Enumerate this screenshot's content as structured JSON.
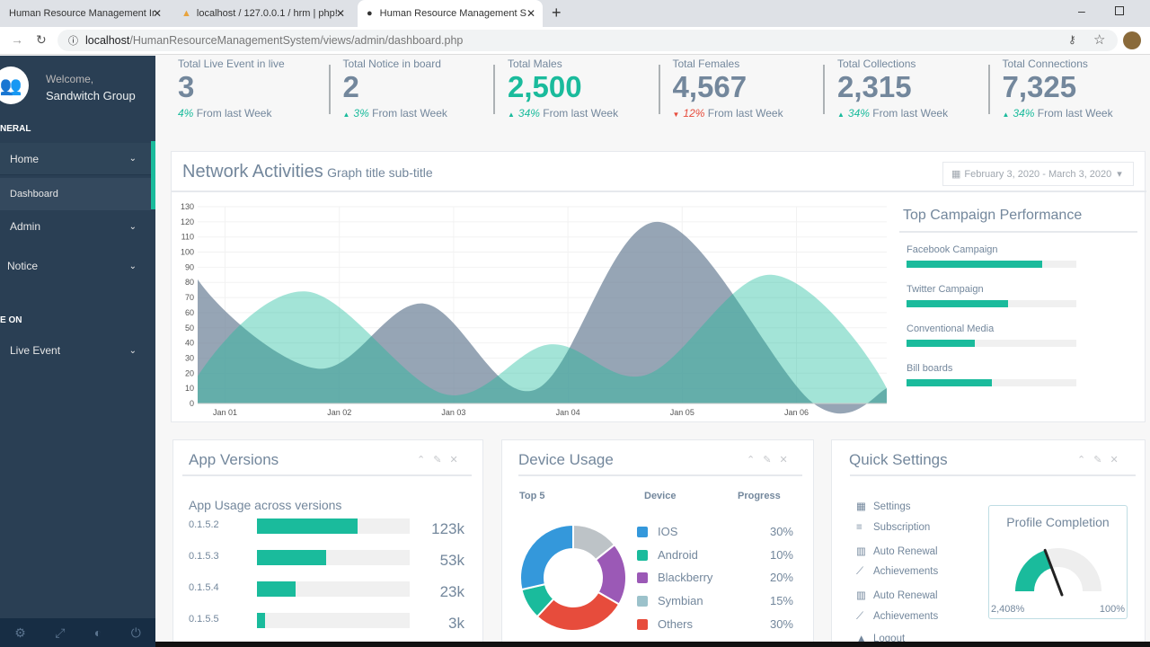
{
  "browser": {
    "tabs": [
      {
        "title": "Human Resource Management Ir"
      },
      {
        "title": "localhost / 127.0.0.1 / hrm | php!"
      },
      {
        "title": "Human Resource Management S"
      }
    ],
    "url_host": "localhost",
    "url_path": "/HumanResourceManagementSystem/views/admin/dashboard.php"
  },
  "sidebar": {
    "welcome": "Welcome,",
    "user": "Sandwitch Group",
    "section_general": "NERAL",
    "items": [
      {
        "label": "Home"
      },
      {
        "label": "Dashboard"
      },
      {
        "label": "Admin"
      },
      {
        "label": "Notice"
      }
    ],
    "section_live": "E ON",
    "live_item": "Live Event"
  },
  "stats": [
    {
      "label": "Total Live Event in live",
      "value": "3",
      "change": "4%",
      "suffix": "From last Week",
      "trend": "none"
    },
    {
      "label": "Total Notice in board",
      "value": "2",
      "change": "3%",
      "suffix": "From last Week",
      "trend": "up"
    },
    {
      "label": "Total Males",
      "value": "2,500",
      "change": "34%",
      "suffix": "From last Week",
      "trend": "up"
    },
    {
      "label": "Total Females",
      "value": "4,567",
      "change": "12%",
      "suffix": "From last Week",
      "trend": "down"
    },
    {
      "label": "Total Collections",
      "value": "2,315",
      "change": "34%",
      "suffix": "From last Week",
      "trend": "up"
    },
    {
      "label": "Total Connections",
      "value": "7,325",
      "change": "34%",
      "suffix": "From last Week",
      "trend": "up"
    }
  ],
  "network": {
    "title": "Network Activities",
    "subtitle": "Graph title sub-title",
    "daterange": "February 3, 2020 - March 3, 2020"
  },
  "chart_data": {
    "type": "area",
    "title": "Network Activities",
    "ylim": [
      0,
      130
    ],
    "yticks": [
      0,
      10,
      20,
      30,
      40,
      50,
      60,
      70,
      80,
      90,
      100,
      110,
      120,
      130
    ],
    "xticks": [
      "Jan 01",
      "Jan 02",
      "Jan 03",
      "Jan 04",
      "Jan 05",
      "Jan 06"
    ],
    "xlim": [
      0.76,
      6.79
    ],
    "series": [
      {
        "name": "series-1",
        "color": "#73879C",
        "points": [
          [
            0.76,
            82
          ],
          [
            1.81,
            23
          ],
          [
            2.74,
            66
          ],
          [
            3.71,
            9
          ],
          [
            4.79,
            120
          ],
          [
            6.15,
            0
          ],
          [
            6.79,
            10
          ]
        ]
      },
      {
        "name": "series-2",
        "color": "#1ABB9C",
        "points": [
          [
            0.76,
            18
          ],
          [
            1.71,
            74
          ],
          [
            2.93,
            6
          ],
          [
            3.84,
            39
          ],
          [
            4.69,
            19
          ],
          [
            5.78,
            85
          ],
          [
            6.79,
            10
          ]
        ]
      }
    ]
  },
  "campaign": {
    "title": "Top Campaign Performance",
    "items": [
      {
        "label": "Facebook Campaign",
        "pct": 80
      },
      {
        "label": "Twitter Campaign",
        "pct": 60
      },
      {
        "label": "Conventional Media",
        "pct": 40
      },
      {
        "label": "Bill boards",
        "pct": 50
      }
    ]
  },
  "app_versions": {
    "title": "App Versions",
    "subtitle": "App Usage across versions",
    "items": [
      {
        "version": "0.1.5.2",
        "value": "123k",
        "pct": 66
      },
      {
        "version": "0.1.5.3",
        "value": "53k",
        "pct": 45
      },
      {
        "version": "0.1.5.4",
        "value": "23k",
        "pct": 25
      },
      {
        "version": "0.1.5.5",
        "value": "3k",
        "pct": 5
      }
    ]
  },
  "device_usage": {
    "title": "Device Usage",
    "col_top": "Top 5",
    "col_device": "Device",
    "col_progress": "Progress",
    "items": [
      {
        "name": "IOS",
        "pct": "30%",
        "value": 30,
        "color": "#3498DB"
      },
      {
        "name": "Android",
        "pct": "10%",
        "value": 10,
        "color": "#1ABB9C"
      },
      {
        "name": "Blackberry",
        "pct": "20%",
        "value": 20,
        "color": "#9B59B6"
      },
      {
        "name": "Symbian",
        "pct": "15%",
        "value": 15,
        "color": "#9CC2CB"
      },
      {
        "name": "Others",
        "pct": "30%",
        "value": 30,
        "color": "#E74C3C"
      }
    ]
  },
  "quick_settings": {
    "title": "Quick Settings",
    "items": [
      {
        "label": "Settings",
        "icon": "calendar-icon"
      },
      {
        "label": "Subscription",
        "icon": "bars-icon"
      },
      {
        "label": "Auto Renewal",
        "icon": "bar-chart-icon"
      },
      {
        "label": "Achievements",
        "icon": "line-chart-icon"
      },
      {
        "label": "Auto Renewal",
        "icon": "bar-chart-icon"
      },
      {
        "label": "Achievements",
        "icon": "line-chart-icon"
      },
      {
        "label": "Logout",
        "icon": "area-chart-icon"
      }
    ],
    "profile_title": "Profile Completion",
    "gauge_min_label": "2,408%",
    "gauge_max_label": "100%",
    "gauge_fraction": 0.4
  }
}
